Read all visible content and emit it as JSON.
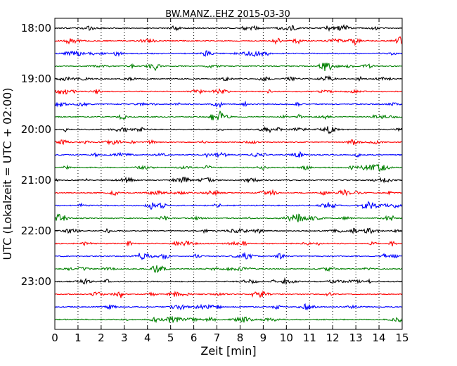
{
  "chart_data": {
    "type": "line",
    "title": "BW.MANZ..EHZ 2015-03-30",
    "xlabel": "Zeit  [min]",
    "ylabel": "UTC (Lokalzeit = UTC + 02:00)",
    "xlim": [
      0,
      15
    ],
    "x_ticks": [
      "0",
      "1",
      "2",
      "3",
      "4",
      "5",
      "6",
      "7",
      "8",
      "9",
      "10",
      "11",
      "12",
      "13",
      "14",
      "15"
    ],
    "y_ticks": [
      "18:00",
      "19:00",
      "20:00",
      "21:00",
      "22:00",
      "23:00"
    ],
    "grid": "vertical-dotted",
    "trace_colors": [
      "#000000",
      "#ff0000",
      "#0000ff",
      "#008000"
    ],
    "traces_per_hour": 4,
    "trace_count": 24,
    "trace_minutes": 15
  }
}
